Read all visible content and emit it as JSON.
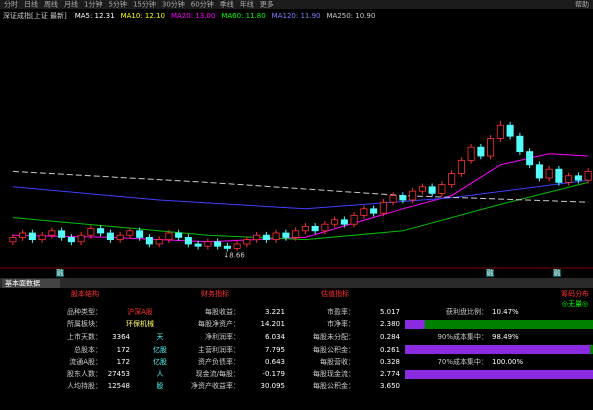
{
  "toolbar": [
    "分时",
    "日线",
    "周线",
    "月线",
    "1分钟",
    "5分钟",
    "15分钟",
    "30分钟",
    "60分钟",
    "季线",
    "年线",
    "更多"
  ],
  "toolbar_right": "帮助",
  "instrument": "深证成指[上证 最新]",
  "ma_header": [
    {
      "text": "MA5: 12.31",
      "color": "#ffffff"
    },
    {
      "text": "MA10: 12.10",
      "color": "#ffff00"
    },
    {
      "text": "MA20: 13.00",
      "color": "#ff00ff"
    },
    {
      "text": "MA60: 11.80",
      "color": "#00ff00"
    },
    {
      "text": "MA120: 11.90",
      "color": "#8080ff"
    },
    {
      "text": "MA250: 10.90",
      "color": "#cccccc"
    }
  ],
  "chart_data": {
    "type": "candlestick",
    "up_color": "#ff3232",
    "down_color": "#54fcfc",
    "ylim": [
      8,
      19
    ],
    "candles": [
      [
        9.1,
        9.45,
        8.95,
        9.3
      ],
      [
        9.3,
        9.65,
        9.15,
        9.5
      ],
      [
        9.5,
        9.65,
        9.05,
        9.2
      ],
      [
        9.2,
        9.55,
        9.05,
        9.4
      ],
      [
        9.4,
        9.75,
        9.25,
        9.6
      ],
      [
        9.6,
        9.75,
        9.15,
        9.3
      ],
      [
        9.3,
        9.45,
        8.95,
        9.1
      ],
      [
        9.1,
        9.55,
        8.95,
        9.4
      ],
      [
        9.4,
        9.85,
        9.25,
        9.7
      ],
      [
        9.7,
        9.85,
        9.35,
        9.5
      ],
      [
        9.5,
        9.65,
        9.05,
        9.2
      ],
      [
        9.2,
        9.55,
        9.05,
        9.4
      ],
      [
        9.4,
        9.75,
        9.25,
        9.6
      ],
      [
        9.6,
        9.75,
        9.15,
        9.3
      ],
      [
        9.3,
        9.45,
        8.85,
        9.0
      ],
      [
        9.0,
        9.35,
        8.85,
        9.2
      ],
      [
        9.2,
        9.65,
        9.05,
        9.5
      ],
      [
        9.5,
        9.65,
        9.15,
        9.3
      ],
      [
        9.3,
        9.45,
        8.85,
        9.0
      ],
      [
        9.0,
        9.15,
        8.75,
        8.9
      ],
      [
        8.9,
        9.25,
        8.75,
        9.1
      ],
      [
        9.1,
        9.25,
        8.75,
        8.9
      ],
      [
        8.9,
        9.05,
        8.66,
        8.8
      ],
      [
        8.8,
        9.15,
        8.7,
        9.0
      ],
      [
        9.0,
        9.35,
        8.85,
        9.2
      ],
      [
        9.2,
        9.55,
        9.05,
        9.4
      ],
      [
        9.4,
        9.55,
        9.05,
        9.2
      ],
      [
        9.2,
        9.65,
        9.05,
        9.5
      ],
      [
        9.5,
        9.65,
        9.15,
        9.3
      ],
      [
        9.3,
        9.75,
        9.15,
        9.6
      ],
      [
        9.6,
        9.95,
        9.45,
        9.8
      ],
      [
        9.8,
        9.95,
        9.45,
        9.6
      ],
      [
        9.6,
        10.05,
        9.45,
        9.9
      ],
      [
        9.9,
        10.25,
        9.75,
        10.1
      ],
      [
        10.1,
        10.25,
        9.75,
        9.9
      ],
      [
        9.9,
        10.45,
        9.75,
        10.3
      ],
      [
        10.3,
        10.75,
        10.15,
        10.6
      ],
      [
        10.6,
        10.75,
        10.25,
        10.4
      ],
      [
        10.4,
        11.05,
        10.25,
        10.9
      ],
      [
        10.9,
        11.35,
        10.75,
        11.2
      ],
      [
        11.2,
        11.35,
        10.85,
        11.0
      ],
      [
        11.0,
        11.55,
        10.85,
        11.4
      ],
      [
        11.4,
        11.75,
        11.25,
        11.6
      ],
      [
        11.6,
        11.75,
        11.15,
        11.3
      ],
      [
        11.3,
        11.85,
        11.15,
        11.7
      ],
      [
        11.7,
        12.35,
        11.55,
        12.2
      ],
      [
        12.2,
        12.95,
        12.05,
        12.8
      ],
      [
        12.8,
        13.55,
        12.65,
        13.4
      ],
      [
        13.4,
        13.55,
        12.85,
        13.0
      ],
      [
        13.0,
        13.95,
        12.85,
        13.8
      ],
      [
        13.8,
        14.6,
        13.65,
        14.4
      ],
      [
        14.4,
        14.55,
        13.75,
        13.9
      ],
      [
        13.9,
        14.05,
        13.05,
        13.2
      ],
      [
        13.2,
        13.35,
        12.45,
        12.6
      ],
      [
        12.6,
        12.75,
        11.85,
        12.0
      ],
      [
        12.0,
        12.55,
        11.85,
        12.4
      ],
      [
        12.4,
        12.55,
        11.65,
        11.8
      ],
      [
        11.8,
        12.25,
        11.65,
        12.1
      ],
      [
        12.1,
        12.25,
        11.75,
        11.9
      ],
      [
        11.9,
        12.45,
        11.75,
        12.3
      ]
    ],
    "min_label": "↓8.66",
    "series": [
      {
        "name": "MA20",
        "color": "#ff00ff",
        "x": [
          0,
          10,
          20,
          30,
          40,
          45,
          50,
          55,
          59
        ],
        "values": [
          9.4,
          9.3,
          9.1,
          9.3,
          10.6,
          11.2,
          12.6,
          13.1,
          13.0
        ]
      },
      {
        "name": "MA60",
        "color": "#00c000",
        "x": [
          0,
          10,
          20,
          30,
          40,
          50,
          59
        ],
        "values": [
          10.2,
          9.8,
          9.4,
          9.2,
          9.6,
          10.8,
          11.8
        ]
      },
      {
        "name": "MA120",
        "color": "#4040ff",
        "x": [
          0,
          15,
          30,
          45,
          59
        ],
        "values": [
          11.6,
          11.0,
          10.6,
          11.1,
          11.9
        ]
      },
      {
        "name": "MA250",
        "color": "#cccccc",
        "x": [
          0,
          20,
          40,
          59
        ],
        "values": [
          12.3,
          11.8,
          11.2,
          10.9
        ]
      }
    ]
  },
  "markers": [
    "融",
    "融",
    "融"
  ],
  "tab": "基本面数据",
  "panel": {
    "headers": [
      "股本结构",
      "财务指标",
      "估值指标",
      "筹码分布"
    ],
    "chip_status": "◎无量◎",
    "col1": [
      [
        "品种类型：",
        "沪深A股",
        ""
      ],
      [
        "所属板块：",
        "环保机械",
        ""
      ],
      [
        "上市天数：",
        "3364",
        "天"
      ],
      [
        "总股本：",
        "172",
        "亿股"
      ],
      [
        "流通A股：",
        "172",
        "亿股"
      ],
      [
        "股东人数：",
        "27453",
        "人"
      ],
      [
        "人均持股：",
        "12548",
        "股"
      ]
    ],
    "col2": [
      [
        "每股收益：",
        "3.221"
      ],
      [
        "每股净资产：",
        "14.201"
      ],
      [
        "净利润率：",
        "6.034"
      ],
      [
        "主营利润率：",
        "7.795"
      ],
      [
        "资产负债率：",
        "0.643"
      ],
      [
        "现金流/每股：",
        "-0.179"
      ],
      [
        "净资产收益率：",
        "30.095"
      ]
    ],
    "col3": [
      [
        "市盈率：",
        "5.017"
      ],
      [
        "市净率：",
        "2.380"
      ],
      [
        "每股未分配：",
        "0.284"
      ],
      [
        "每股公积金：",
        "0.261"
      ],
      [
        "每股营收：",
        "0.328"
      ],
      [
        "每股现金流：",
        "2.774"
      ],
      [
        "每股公积金：",
        "3.650"
      ]
    ],
    "chips": [
      {
        "label": "获利盘比例：",
        "value": {
          "value": 10.47,
          "label": "10.47%"
        }
      },
      {
        "label": "90%成本集中：",
        "value": {
          "value": 98.49,
          "label": "98.49%"
        }
      },
      {
        "label": "70%成本集中：",
        "value": {
          "value": 100,
          "label": "100.00%"
        }
      }
    ]
  }
}
